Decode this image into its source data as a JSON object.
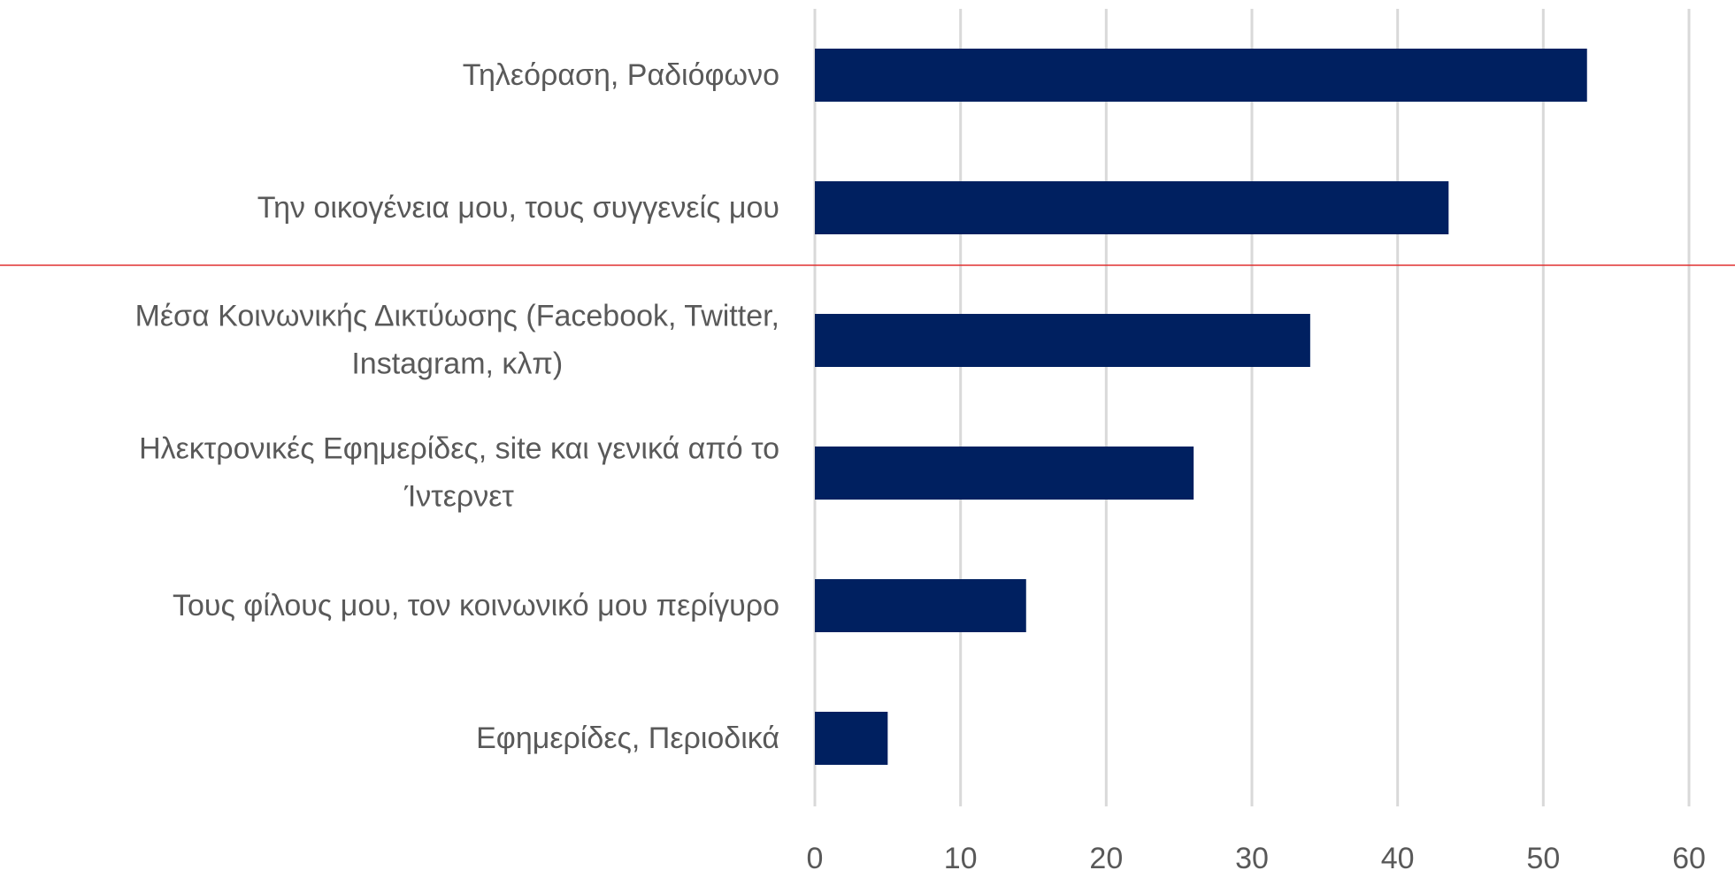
{
  "chart_data": {
    "type": "barh",
    "categories": [
      "Τηλεόραση, Ραδιόφωνο",
      "Την οικογένεια μου, τους συγγενείς μου",
      "Μέσα Κοινωνικής Δικτύωσης (Facebook, Twitter,\nInstagram, κλπ)",
      "Ηλεκτρονικές Εφημερίδες, site και γενικά από το\nΊντερνετ",
      "Τους φίλους μου, τον κοινωνικό μου περίγυρο",
      "Εφημερίδες, Περιοδικά"
    ],
    "values": [
      53,
      43.5,
      34,
      26,
      14.5,
      5
    ],
    "color": "#002060",
    "xlim": [
      0,
      60
    ],
    "xticks": [
      0,
      10,
      20,
      30,
      40,
      50,
      60
    ],
    "grid": true
  }
}
